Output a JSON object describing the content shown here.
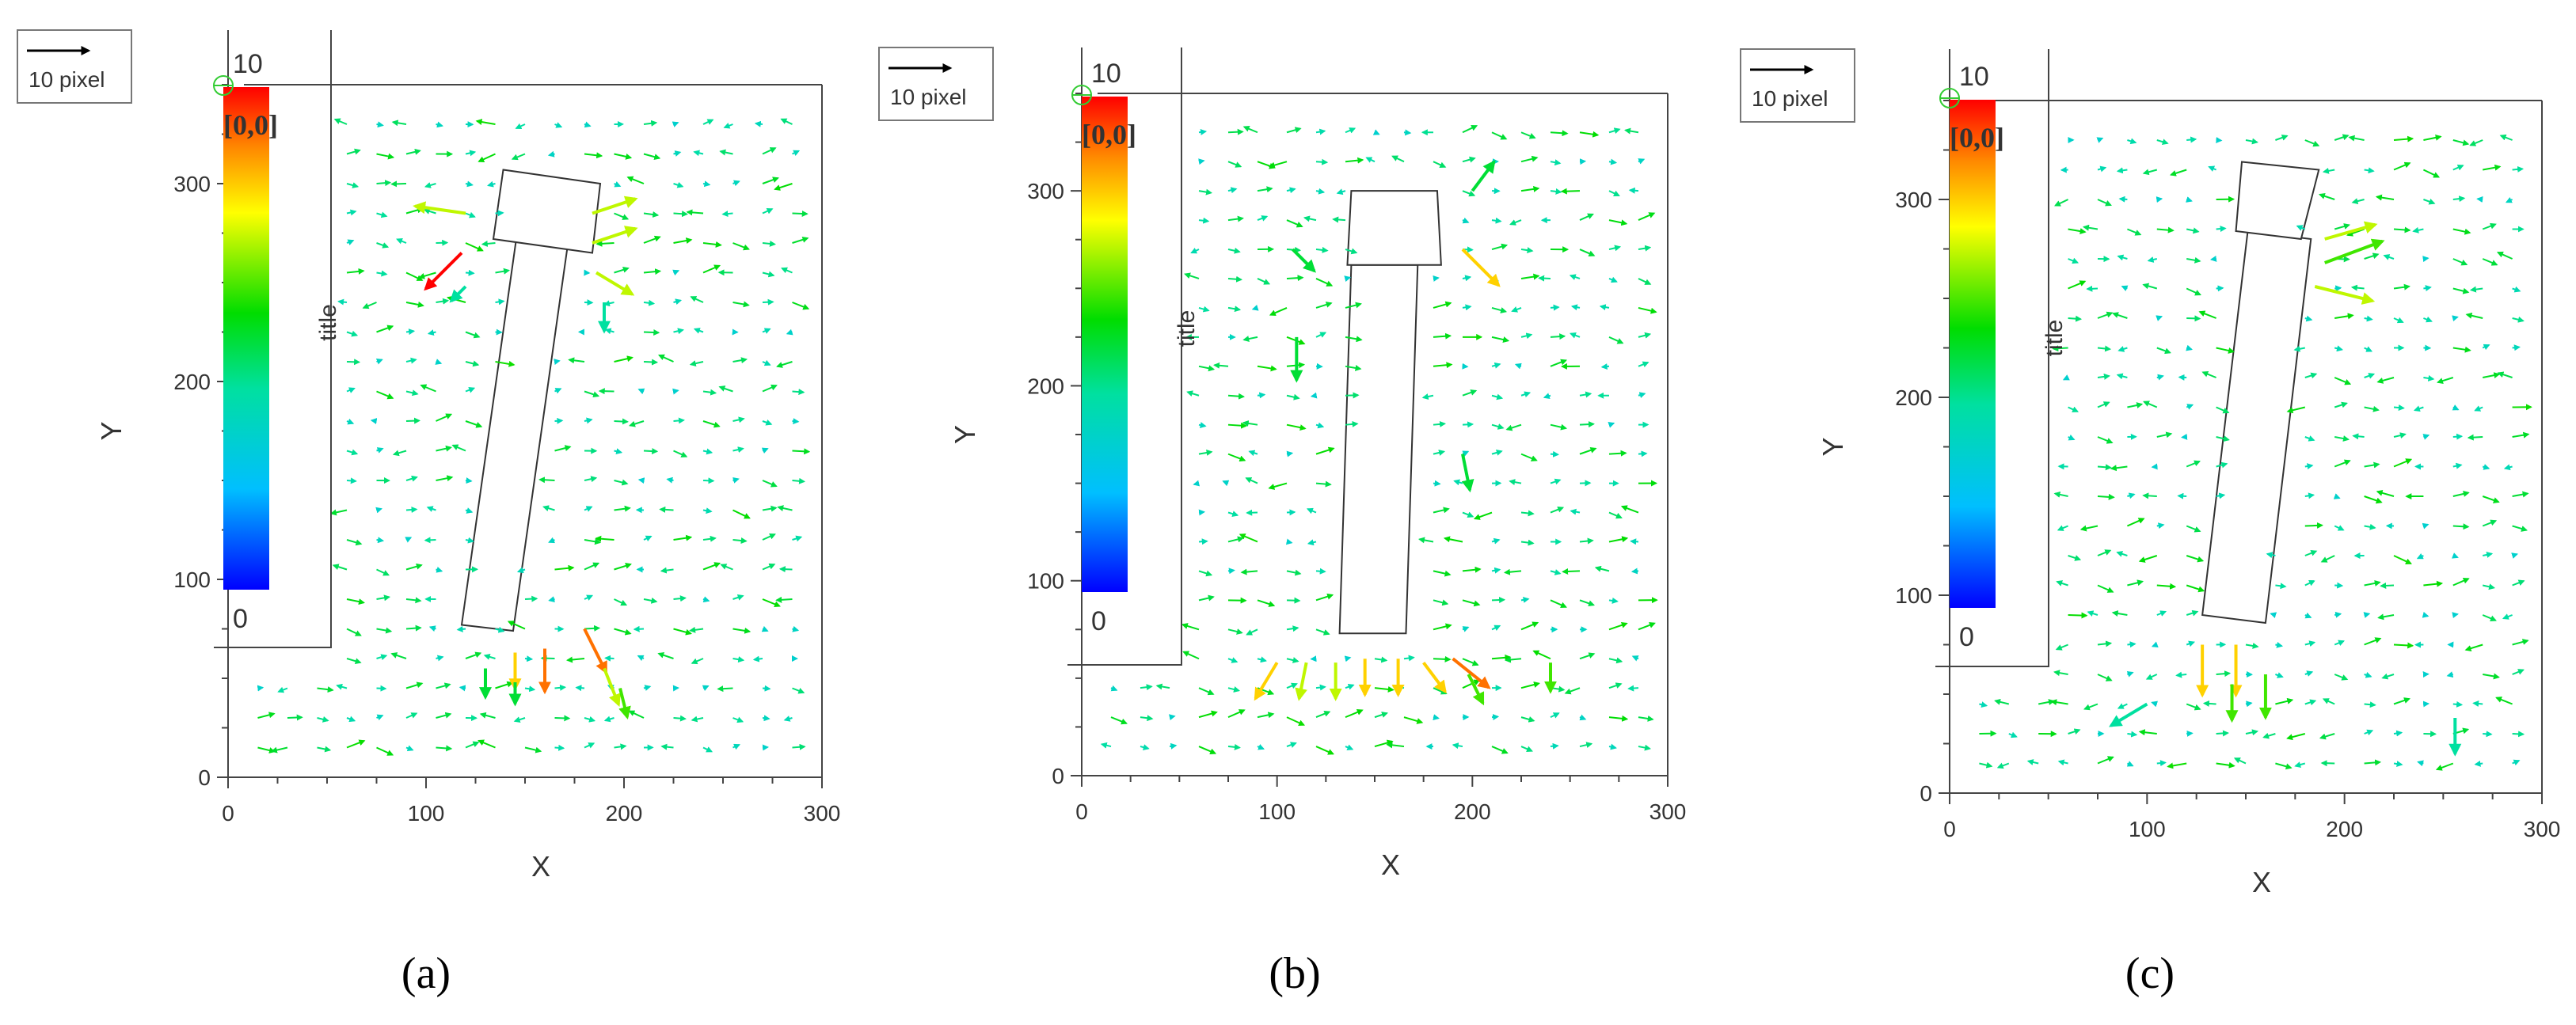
{
  "figure": {
    "panel_labels": [
      "(a)",
      "(b)",
      "(c)"
    ]
  },
  "chart_data": [
    {
      "type": "quiver",
      "panel": "(a)",
      "xlabel": "X",
      "ylabel": "Y",
      "xlim": [
        0,
        300
      ],
      "ylim": [
        0,
        350
      ],
      "x_ticks": [
        0,
        100,
        200,
        300
      ],
      "y_ticks": [
        0,
        100,
        200,
        300
      ],
      "reference_vector": {
        "length": 10,
        "label": "10 pixel"
      },
      "colorbar": {
        "title": "title",
        "min": 0,
        "max": 10,
        "min_label": "0",
        "max_label": "10",
        "colormap": "jet"
      },
      "origin_label": "[0,0]",
      "object_outline": [
        [
          118,
          77
        ],
        [
          144,
          74
        ],
        [
          172,
          272
        ],
        [
          146,
          275
        ]
      ],
      "object_top_block": [
        [
          134,
          272
        ],
        [
          184,
          265
        ],
        [
          188,
          300
        ],
        [
          139,
          307
        ]
      ],
      "strong_vectors": [
        {
          "x": 120,
          "y": 285,
          "u": -7,
          "v": 1,
          "m": 7
        },
        {
          "x": 118,
          "y": 265,
          "u": -5,
          "v": -5,
          "m": 10
        },
        {
          "x": 120,
          "y": 248,
          "u": -2,
          "v": -2,
          "m": 4
        },
        {
          "x": 184,
          "y": 285,
          "u": 6,
          "v": 2,
          "m": 7
        },
        {
          "x": 184,
          "y": 270,
          "u": 6,
          "v": 2,
          "m": 7
        },
        {
          "x": 186,
          "y": 255,
          "u": 5,
          "v": -3,
          "m": 7
        },
        {
          "x": 190,
          "y": 240,
          "u": 0,
          "v": -4,
          "m": 4
        },
        {
          "x": 145,
          "y": 63,
          "u": 0,
          "v": -5,
          "m": 8
        },
        {
          "x": 160,
          "y": 65,
          "u": 0,
          "v": -6,
          "m": 9
        },
        {
          "x": 180,
          "y": 75,
          "u": 3,
          "v": -6,
          "m": 9
        },
        {
          "x": 190,
          "y": 55,
          "u": 2,
          "v": -5,
          "m": 7
        },
        {
          "x": 198,
          "y": 45,
          "u": 1,
          "v": -4,
          "m": 6
        },
        {
          "x": 130,
          "y": 55,
          "u": 0,
          "v": -4,
          "m": 5
        },
        {
          "x": 145,
          "y": 48,
          "u": 0,
          "v": -3,
          "m": 5
        }
      ],
      "flow_seed": 3
    },
    {
      "type": "quiver",
      "panel": "(b)",
      "xlabel": "X",
      "ylabel": "Y",
      "xlim": [
        0,
        300
      ],
      "ylim": [
        0,
        350
      ],
      "x_ticks": [
        0,
        100,
        200,
        300
      ],
      "y_ticks": [
        0,
        100,
        200,
        300
      ],
      "reference_vector": {
        "length": 10,
        "label": "10 pixel"
      },
      "colorbar": {
        "title": "title",
        "min": 0,
        "max": 10,
        "min_label": "0",
        "max_label": "10",
        "colormap": "jet"
      },
      "origin_label": "[0,0]",
      "object_outline": [
        [
          132,
          73
        ],
        [
          166,
          73
        ],
        [
          172,
          262
        ],
        [
          138,
          262
        ]
      ],
      "object_top_block": [
        [
          136,
          262
        ],
        [
          184,
          262
        ],
        [
          182,
          300
        ],
        [
          138,
          300
        ]
      ],
      "strong_vectors": [
        {
          "x": 100,
          "y": 58,
          "u": -3,
          "v": -5,
          "m": 8
        },
        {
          "x": 115,
          "y": 58,
          "u": -1,
          "v": -5,
          "m": 7
        },
        {
          "x": 130,
          "y": 58,
          "u": 0,
          "v": -5,
          "m": 7
        },
        {
          "x": 145,
          "y": 60,
          "u": 0,
          "v": -5,
          "m": 8
        },
        {
          "x": 162,
          "y": 60,
          "u": 0,
          "v": -5,
          "m": 8
        },
        {
          "x": 175,
          "y": 58,
          "u": 3,
          "v": -4,
          "m": 8
        },
        {
          "x": 190,
          "y": 60,
          "u": 5,
          "v": -4,
          "m": 9
        },
        {
          "x": 198,
          "y": 52,
          "u": 2,
          "v": -4,
          "m": 6
        },
        {
          "x": 240,
          "y": 58,
          "u": 0,
          "v": -4,
          "m": 6
        },
        {
          "x": 195,
          "y": 270,
          "u": 5,
          "v": -5,
          "m": 8
        },
        {
          "x": 200,
          "y": 300,
          "u": 3,
          "v": 4,
          "m": 5
        },
        {
          "x": 195,
          "y": 165,
          "u": 1,
          "v": -5,
          "m": 5
        },
        {
          "x": 110,
          "y": 225,
          "u": 0,
          "v": -6,
          "m": 5
        },
        {
          "x": 108,
          "y": 270,
          "u": 3,
          "v": -3,
          "m": 5
        }
      ],
      "flow_seed": 11
    },
    {
      "type": "quiver",
      "panel": "(c)",
      "xlabel": "X",
      "ylabel": "Y",
      "xlim": [
        0,
        300
      ],
      "ylim": [
        0,
        350
      ],
      "x_ticks": [
        0,
        100,
        200,
        300
      ],
      "y_ticks": [
        0,
        100,
        200,
        300
      ],
      "reference_vector": {
        "length": 10,
        "label": "10 pixel"
      },
      "colorbar": {
        "title": "title",
        "min": 0,
        "max": 10,
        "min_label": "0",
        "max_label": "10",
        "colormap": "jet"
      },
      "origin_label": "[0,0]",
      "object_outline": [
        [
          128,
          90
        ],
        [
          160,
          86
        ],
        [
          183,
          280
        ],
        [
          151,
          284
        ]
      ],
      "object_top_block": [
        [
          145,
          284
        ],
        [
          178,
          280
        ],
        [
          187,
          315
        ],
        [
          148,
          319
        ]
      ],
      "strong_vectors": [
        {
          "x": 190,
          "y": 280,
          "u": 7,
          "v": 2,
          "m": 7
        },
        {
          "x": 190,
          "y": 268,
          "u": 8,
          "v": 3,
          "m": 6
        },
        {
          "x": 185,
          "y": 256,
          "u": 8,
          "v": -2,
          "m": 7
        },
        {
          "x": 128,
          "y": 75,
          "u": 0,
          "v": -7,
          "m": 8
        },
        {
          "x": 145,
          "y": 75,
          "u": 0,
          "v": -7,
          "m": 8
        },
        {
          "x": 143,
          "y": 55,
          "u": 0,
          "v": -5,
          "m": 6
        },
        {
          "x": 160,
          "y": 60,
          "u": 0,
          "v": -6,
          "m": 6
        },
        {
          "x": 256,
          "y": 38,
          "u": 0,
          "v": -5,
          "m": 4
        },
        {
          "x": 100,
          "y": 45,
          "u": -5,
          "v": -3,
          "m": 4
        }
      ],
      "flow_seed": 23
    }
  ]
}
